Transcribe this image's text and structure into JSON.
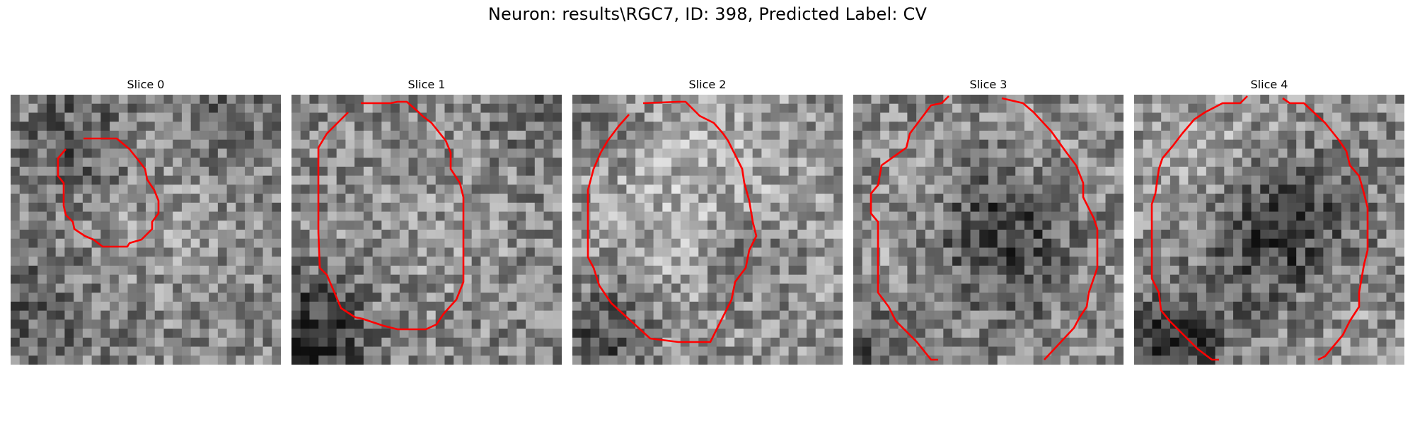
{
  "figure": {
    "title": "Neuron: results\\RGC7, ID: 398, Predicted Label: CV",
    "contour_color": "#ff0000"
  },
  "slices": [
    {
      "label": "Slice 0"
    },
    {
      "label": "Slice 1"
    },
    {
      "label": "Slice 2"
    },
    {
      "label": "Slice 3"
    },
    {
      "label": "Slice 4"
    }
  ]
}
